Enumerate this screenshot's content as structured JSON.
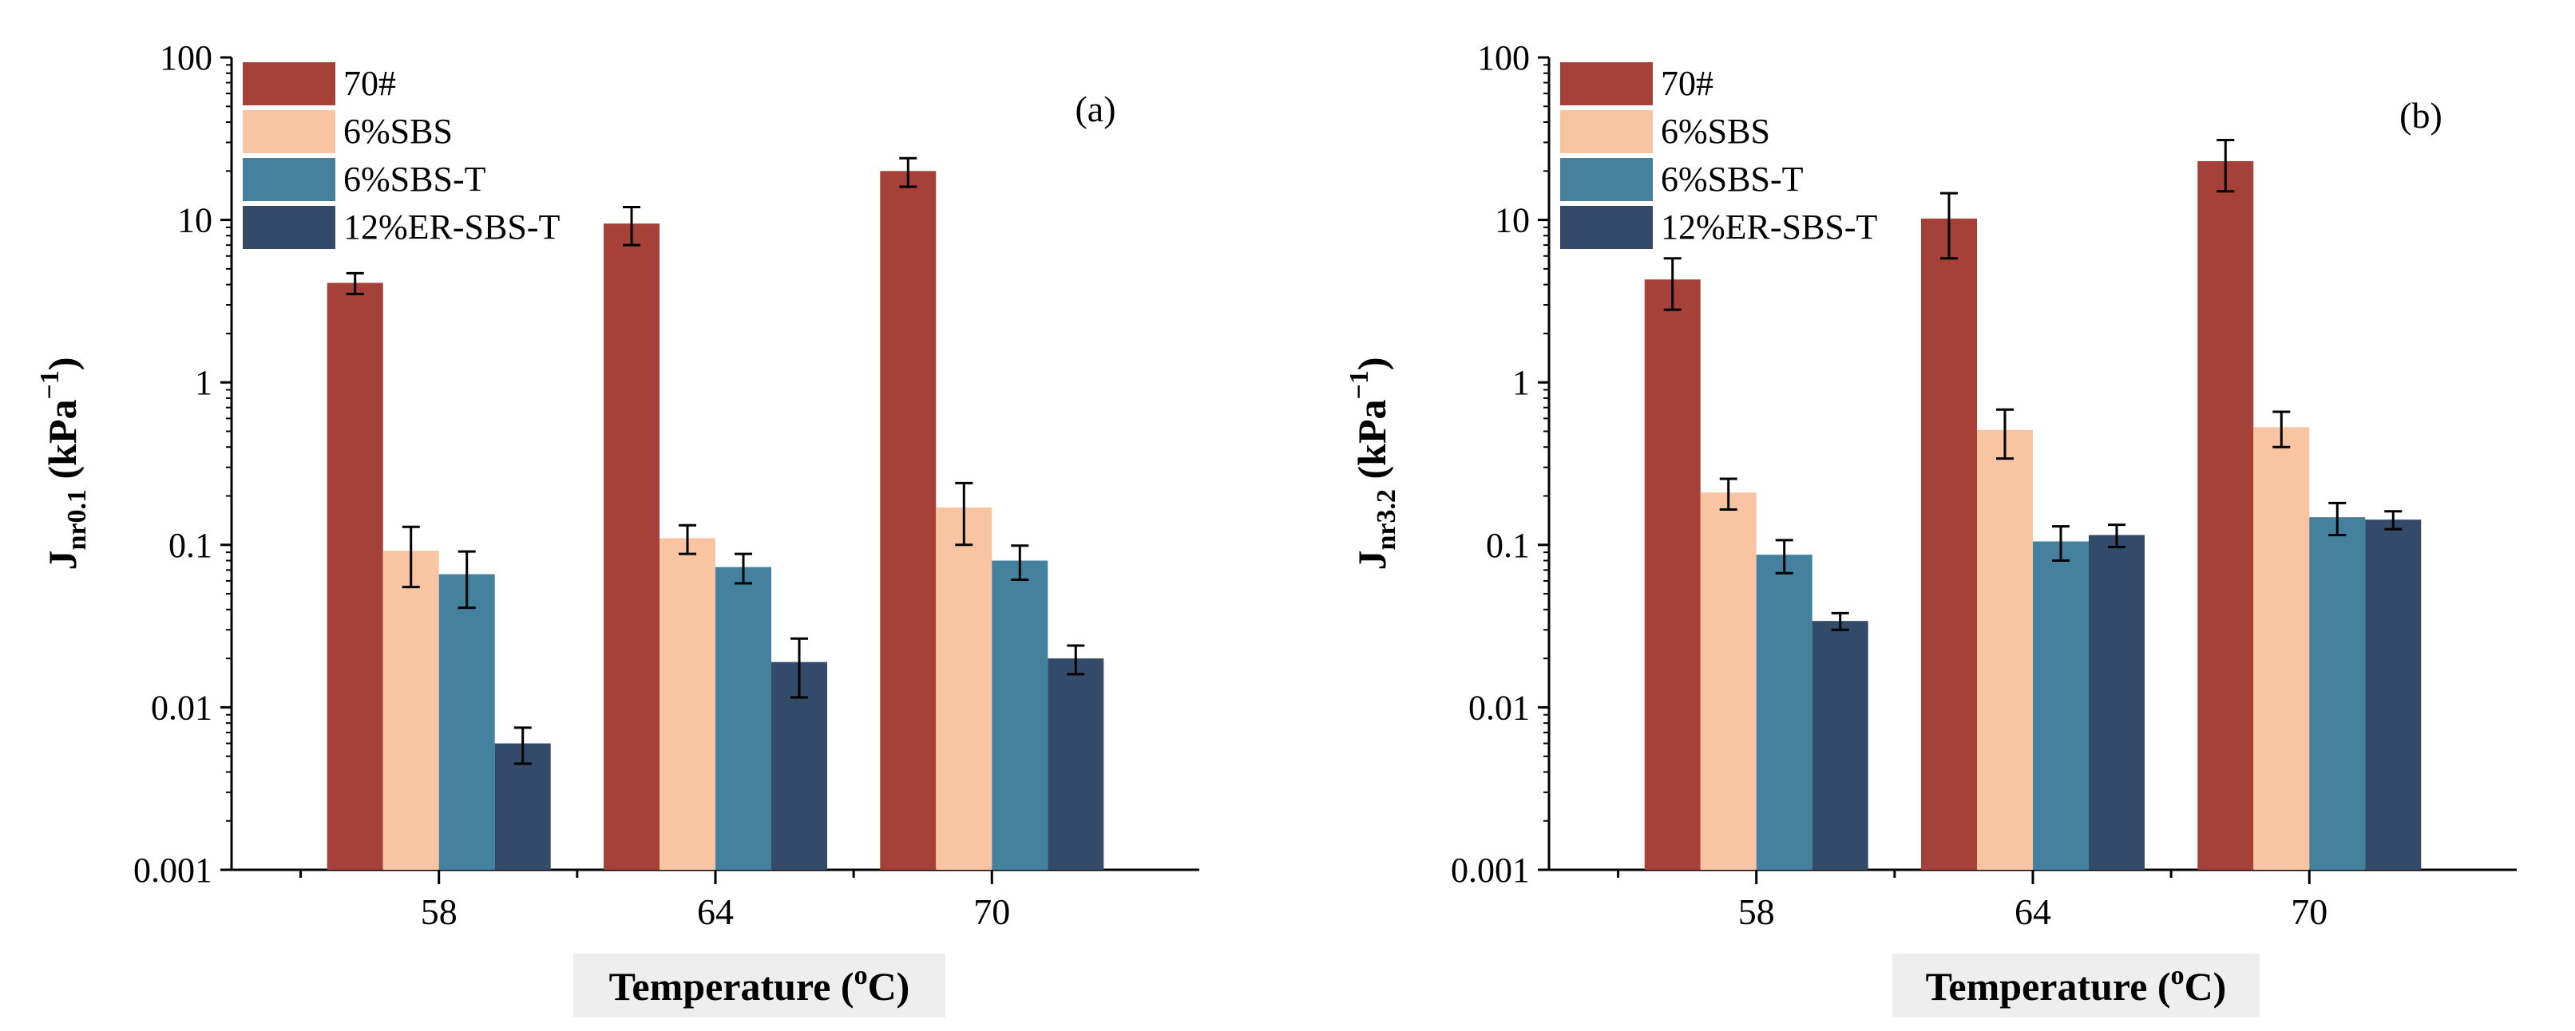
{
  "colors": {
    "70#": "#a54138",
    "6%SBS": "#f8c4a2",
    "6%SBS-T": "#43819f",
    "12%ER-SBS-T": "#344a69",
    "axis": "#000000",
    "error_bar": "#000000",
    "xlabel_box": "#eeeeee"
  },
  "chart_data": [
    {
      "type": "bar",
      "panel_label": "(a)",
      "yscale": "log",
      "ylim": [
        0.001,
        100
      ],
      "yticks": [
        "0.001",
        "0.01",
        "0.1",
        "1",
        "10",
        "100"
      ],
      "ylabel": {
        "main": "J",
        "sub": "nr0.1",
        "rest": " (kPa",
        "sup": "−1",
        "close": ")"
      },
      "xlabel": {
        "main": "Temperature (",
        "sup": "o",
        "rest": "C)"
      },
      "categories": [
        "58",
        "64",
        "70"
      ],
      "legend": [
        "70#",
        "6%SBS",
        "6%SBS-T",
        "12%ER-SBS-T"
      ],
      "series": [
        {
          "name": "70#",
          "values": [
            4.1,
            9.5,
            20.0
          ],
          "errors": [
            0.6,
            2.5,
            4.0
          ]
        },
        {
          "name": "6%SBS",
          "values": [
            0.092,
            0.11,
            0.17
          ],
          "errors": [
            0.037,
            0.022,
            0.07
          ]
        },
        {
          "name": "6%SBS-T",
          "values": [
            0.066,
            0.073,
            0.08
          ],
          "errors": [
            0.025,
            0.015,
            0.019
          ]
        },
        {
          "name": "12%ER-SBS-T",
          "values": [
            0.006,
            0.019,
            0.02
          ],
          "errors": [
            0.0015,
            0.0075,
            0.004
          ]
        }
      ]
    },
    {
      "type": "bar",
      "panel_label": "(b)",
      "yscale": "log",
      "ylim": [
        0.001,
        100
      ],
      "yticks": [
        "0.001",
        "0.01",
        "0.1",
        "1",
        "10",
        "100"
      ],
      "ylabel": {
        "main": "J",
        "sub": "nr3.2",
        "rest": " (kPa",
        "sup": "−1",
        "close": ")"
      },
      "xlabel": {
        "main": "Temperature (",
        "sup": "o",
        "rest": "C)"
      },
      "categories": [
        "58",
        "64",
        "70"
      ],
      "legend": [
        "70#",
        "6%SBS",
        "6%SBS-T",
        "12%ER-SBS-T"
      ],
      "series": [
        {
          "name": "70#",
          "values": [
            4.3,
            10.2,
            23.0
          ],
          "errors": [
            1.5,
            4.4,
            8.0
          ]
        },
        {
          "name": "6%SBS",
          "values": [
            0.21,
            0.51,
            0.53
          ],
          "errors": [
            0.045,
            0.17,
            0.13
          ]
        },
        {
          "name": "6%SBS-T",
          "values": [
            0.087,
            0.105,
            0.148
          ],
          "errors": [
            0.02,
            0.025,
            0.033
          ]
        },
        {
          "name": "12%ER-SBS-T",
          "values": [
            0.034,
            0.115,
            0.143
          ],
          "errors": [
            0.004,
            0.018,
            0.018
          ]
        }
      ]
    }
  ]
}
